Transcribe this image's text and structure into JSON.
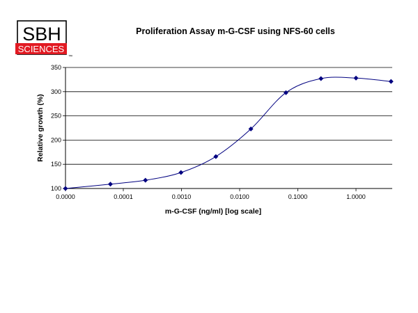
{
  "logo": {
    "line1": "SBH",
    "line2": "SCIENCES",
    "mark": "™",
    "colors": {
      "frame": "#000000",
      "banner": "#e21a22",
      "banner_text": "#ffffff"
    }
  },
  "chart_data": {
    "type": "line",
    "title": "Proliferation Assay m-G-CSF using NFS-60 cells",
    "xlabel": "m-G-CSF  (ng/ml) [log scale]",
    "ylabel": "Relative growth (%)",
    "xscale": "log-like",
    "x_tick_labels": [
      "0.0000",
      "0.0001",
      "0.0010",
      "0.0100",
      "0.1000",
      "1.0000"
    ],
    "yticks": [
      100,
      150,
      200,
      250,
      300,
      350
    ],
    "ylim": [
      100,
      350
    ],
    "grid": "horizontal",
    "legend": "none",
    "series": [
      {
        "marker": "diamond",
        "color": "#000080",
        "points": [
          {
            "x": 0.0,
            "y": 100
          },
          {
            "x": 6e-05,
            "y": 109
          },
          {
            "x": 0.00024,
            "y": 117
          },
          {
            "x": 0.00098,
            "y": 133
          },
          {
            "x": 0.0039,
            "y": 166
          },
          {
            "x": 0.0156,
            "y": 223
          },
          {
            "x": 0.0625,
            "y": 298
          },
          {
            "x": 0.25,
            "y": 327
          },
          {
            "x": 1.0,
            "y": 328
          },
          {
            "x": 4.0,
            "y": 321
          }
        ]
      }
    ]
  }
}
